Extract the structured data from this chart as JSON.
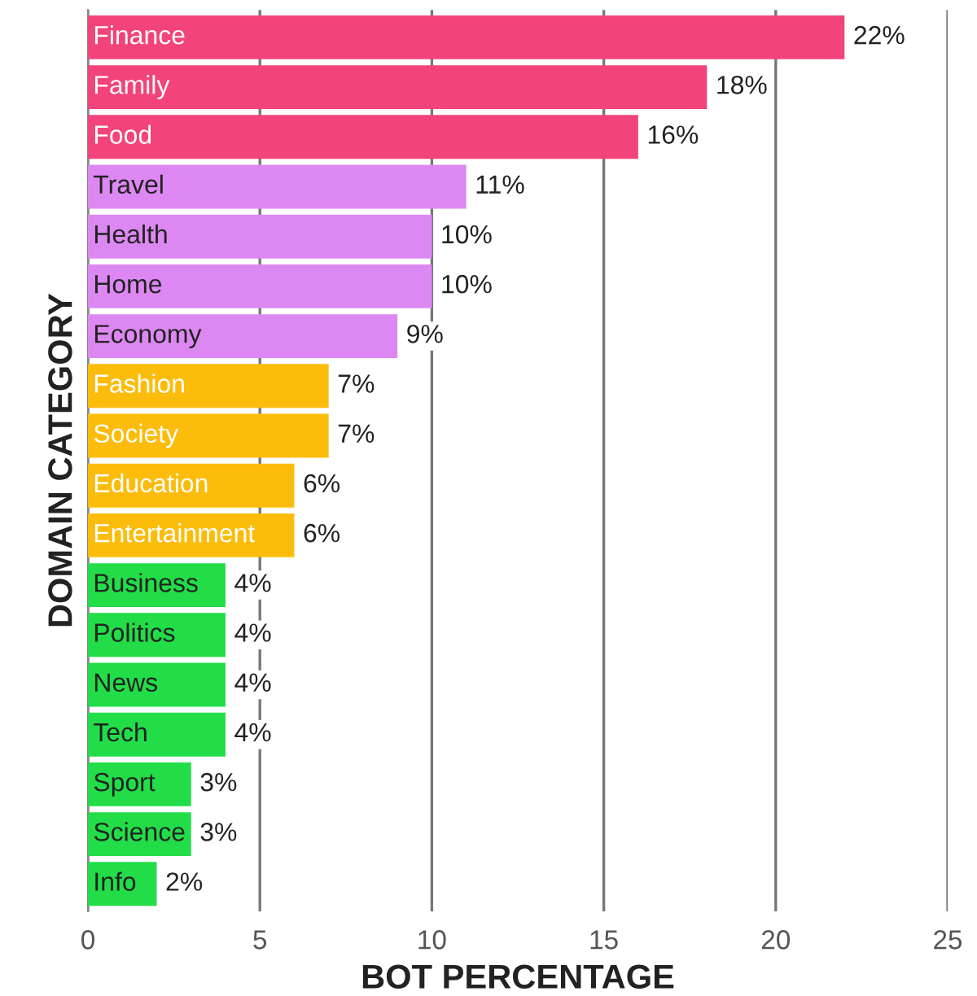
{
  "chart_data": {
    "type": "bar",
    "orientation": "horizontal",
    "xlabel": "BOT PERCENTAGE",
    "ylabel": "DOMAIN CATEGORY",
    "categories": [
      "Finance",
      "Family",
      "Food",
      "Travel",
      "Health",
      "Home",
      "Economy",
      "Fashion",
      "Society",
      "Education",
      "Entertainment",
      "Business",
      "Politics",
      "News",
      "Tech",
      "Sport",
      "Science",
      "Info"
    ],
    "values": [
      22,
      18,
      16,
      11,
      10,
      10,
      9,
      7,
      7,
      6,
      6,
      4,
      4,
      4,
      4,
      3,
      3,
      2
    ],
    "value_labels": [
      "22%",
      "18%",
      "16%",
      "11%",
      "10%",
      "10%",
      "9%",
      "7%",
      "7%",
      "6%",
      "6%",
      "4%",
      "4%",
      "4%",
      "4%",
      "3%",
      "3%",
      "2%"
    ],
    "colors": [
      "#f2437a",
      "#f2437a",
      "#f2437a",
      "#dd88f2",
      "#dd88f2",
      "#dd88f2",
      "#dd88f2",
      "#fcbc0c",
      "#fcbc0c",
      "#fcbc0c",
      "#fcbc0c",
      "#22dd48",
      "#22dd48",
      "#22dd48",
      "#22dd48",
      "#22dd48",
      "#22dd48",
      "#22dd48"
    ],
    "xlim": [
      0,
      25
    ],
    "xticks": [
      0,
      5,
      10,
      15,
      20,
      25
    ],
    "grid": "x"
  }
}
